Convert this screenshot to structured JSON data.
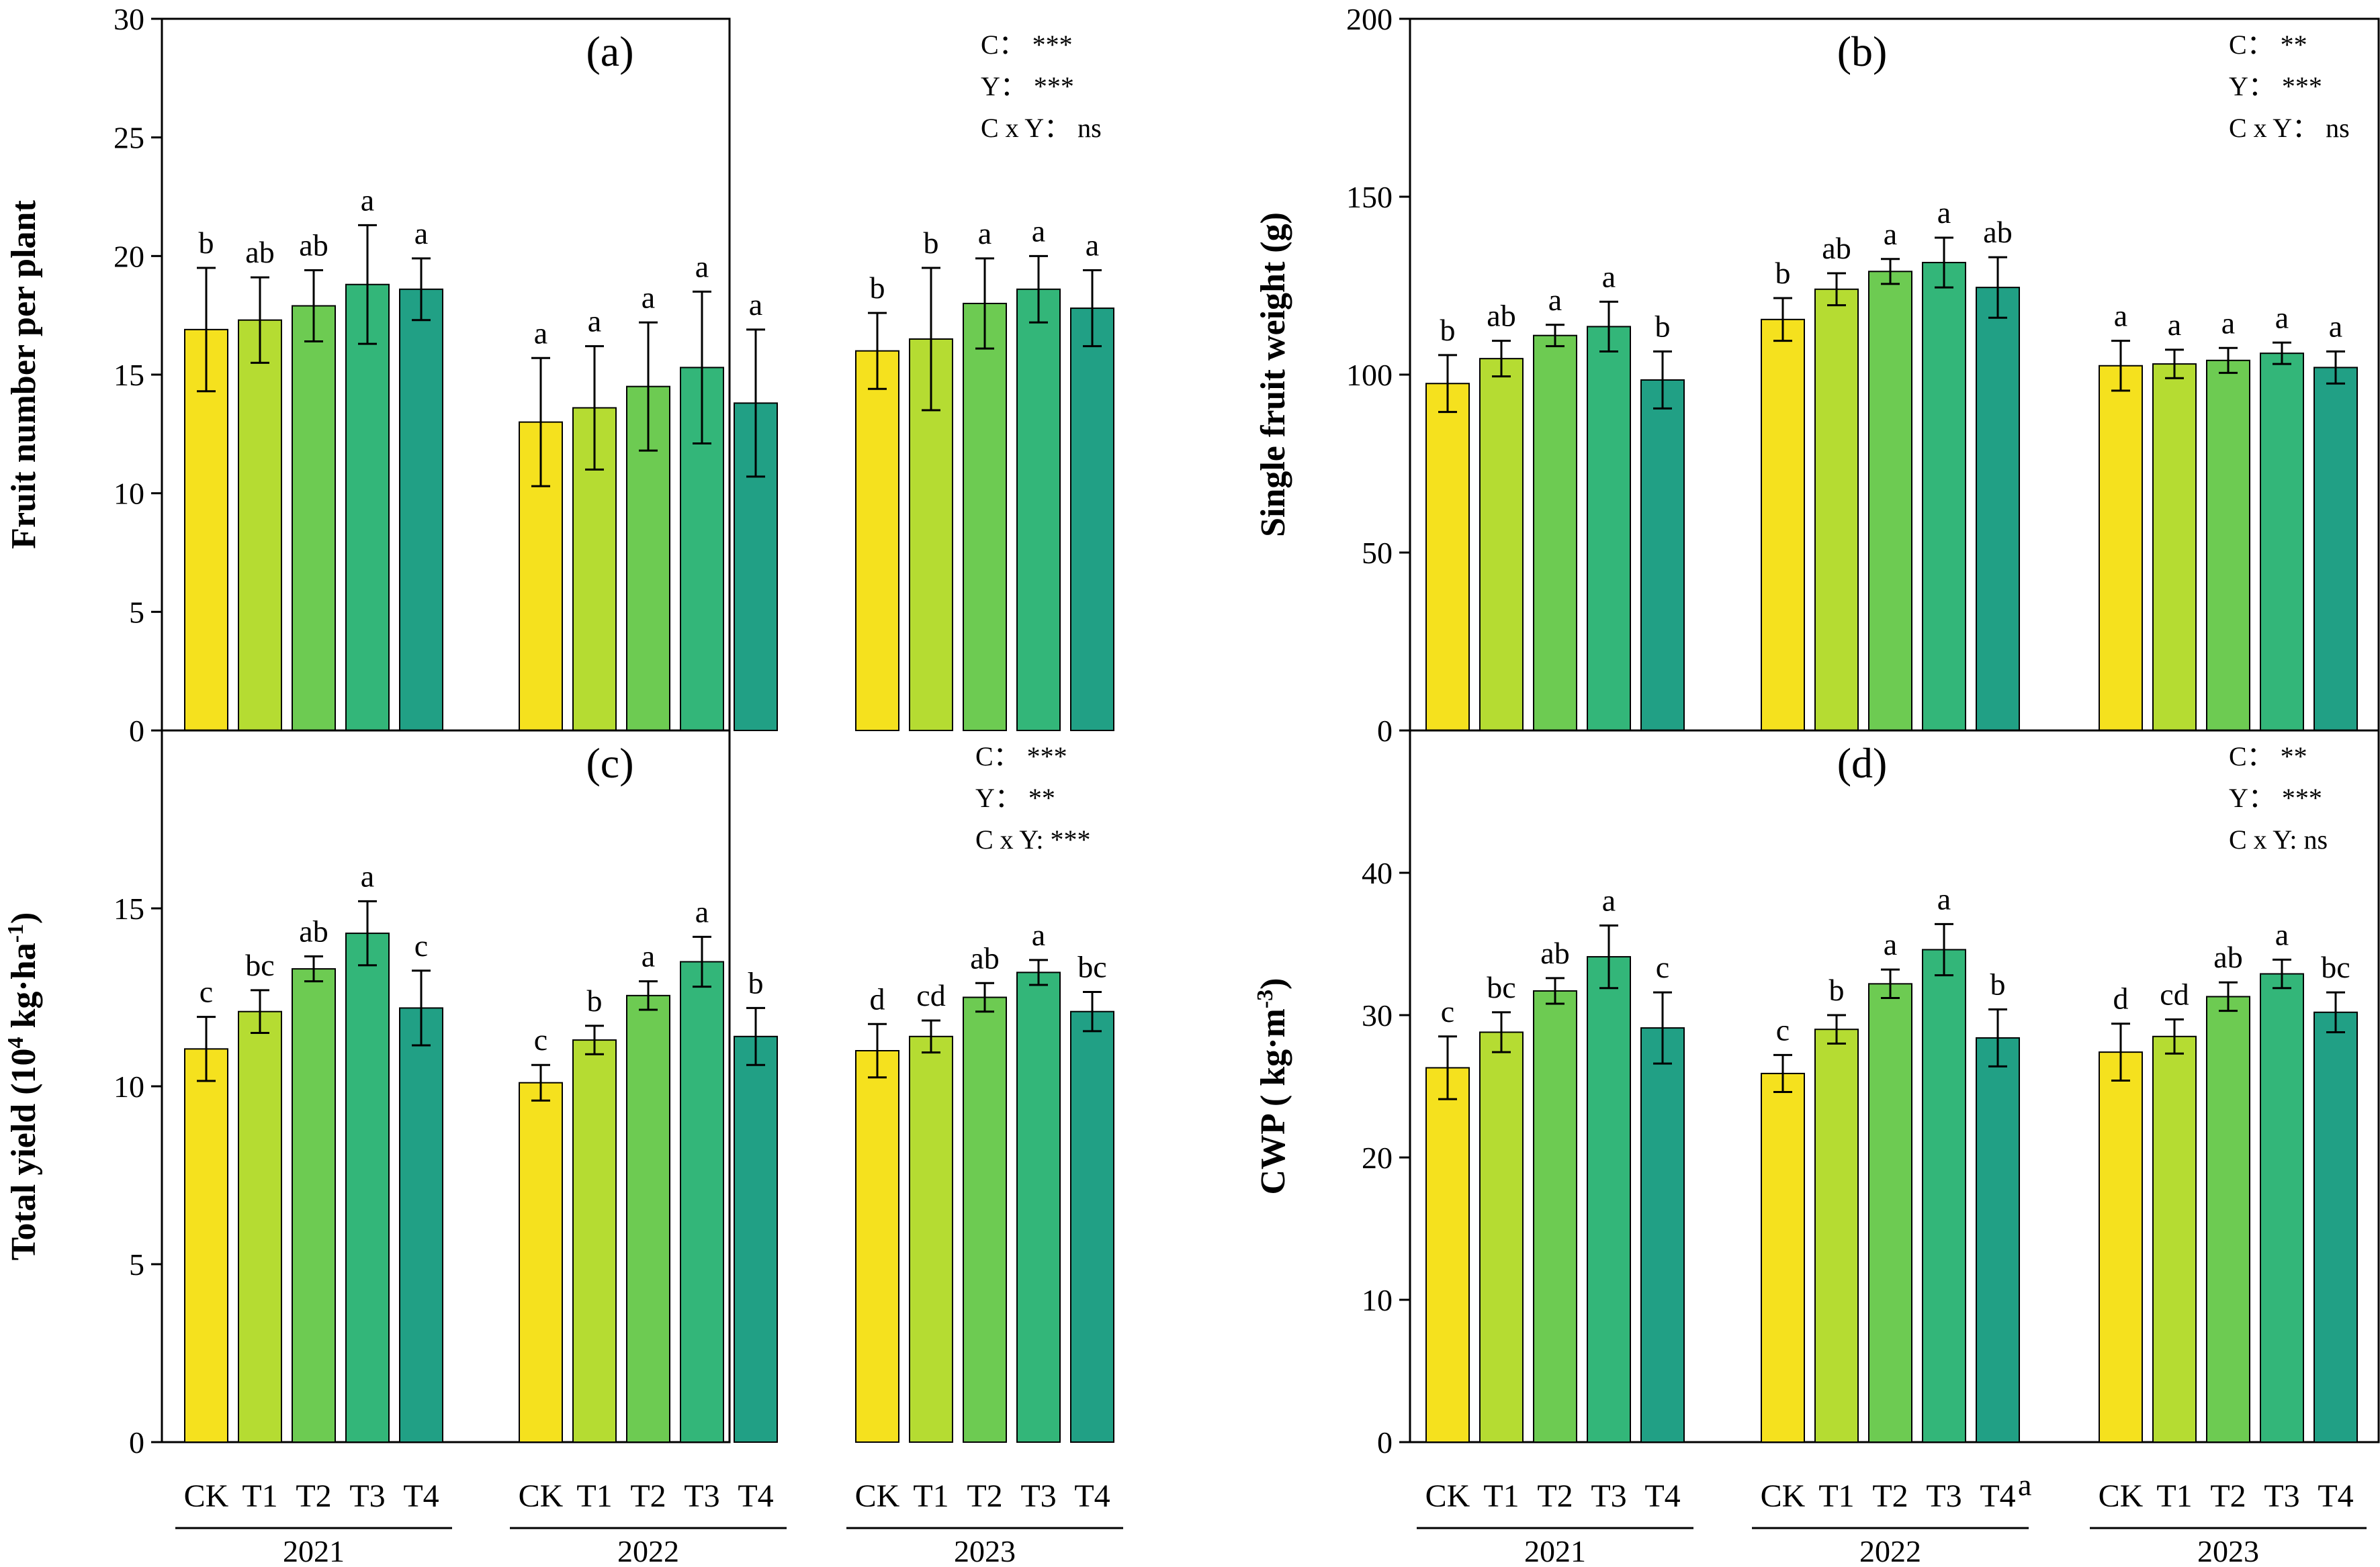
{
  "figure": {
    "treatments": [
      "CK",
      "T1",
      "T2",
      "T3",
      "T4"
    ],
    "years": [
      "2021",
      "2022",
      "2023"
    ],
    "colors": [
      "#f5e11e",
      "#b5dc32",
      "#6dcb52",
      "#33b679",
      "#21a085"
    ],
    "stray_mark": "a"
  },
  "chart_data": [
    {
      "id": "a",
      "type": "bar",
      "panel_label": "(a)",
      "ylabel": "Fruit number per plant",
      "ylabel_parts": [
        {
          "text": "Fruit number per plant",
          "sup": false
        }
      ],
      "ylim": [
        0,
        30
      ],
      "yticks": [
        0,
        5,
        10,
        15,
        20,
        25,
        30
      ],
      "stats": [
        "C： ***",
        "Y： ***",
        "C x Y： ns"
      ],
      "categories": [
        "2021",
        "2022",
        "2023"
      ],
      "series": [
        {
          "name": "CK",
          "values": [
            16.9,
            13.0,
            16.0
          ],
          "errors": [
            2.6,
            2.7,
            1.6
          ],
          "letters": [
            "b",
            "a",
            "b"
          ]
        },
        {
          "name": "T1",
          "values": [
            17.3,
            13.6,
            16.5
          ],
          "errors": [
            1.8,
            2.6,
            3.0
          ],
          "letters": [
            "ab",
            "a",
            "b"
          ]
        },
        {
          "name": "T2",
          "values": [
            17.9,
            14.5,
            18.0
          ],
          "errors": [
            1.5,
            2.7,
            1.9
          ],
          "letters": [
            "ab",
            "a",
            "a"
          ]
        },
        {
          "name": "T3",
          "values": [
            18.8,
            15.3,
            18.6
          ],
          "errors": [
            2.5,
            3.2,
            1.4
          ],
          "letters": [
            "a",
            "a",
            "a"
          ]
        },
        {
          "name": "T4",
          "values": [
            18.6,
            13.8,
            17.8
          ],
          "errors": [
            1.3,
            3.1,
            1.6
          ],
          "letters": [
            "a",
            "a",
            "a"
          ]
        }
      ]
    },
    {
      "id": "b",
      "type": "bar",
      "panel_label": "(b)",
      "ylabel": "Single fruit weight (g)",
      "ylabel_parts": [
        {
          "text": "Single fruit weight (g)",
          "sup": false
        }
      ],
      "ylim": [
        0,
        200
      ],
      "yticks": [
        0,
        50,
        100,
        150,
        200
      ],
      "stats": [
        "C： **",
        "Y： ***",
        "C x Y： ns"
      ],
      "categories": [
        "2021",
        "2022",
        "2023"
      ],
      "series": [
        {
          "name": "CK",
          "values": [
            97.5,
            115.5,
            102.5
          ],
          "errors": [
            8.0,
            6.0,
            7.0
          ],
          "letters": [
            "b",
            "b",
            "a"
          ]
        },
        {
          "name": "T1",
          "values": [
            104.5,
            124.0,
            103.0
          ],
          "errors": [
            5.0,
            4.5,
            4.0
          ],
          "letters": [
            "ab",
            "ab",
            "a"
          ]
        },
        {
          "name": "T2",
          "values": [
            111.0,
            129.0,
            104.0
          ],
          "errors": [
            3.0,
            3.5,
            3.5
          ],
          "letters": [
            "a",
            "a",
            "a"
          ]
        },
        {
          "name": "T3",
          "values": [
            113.5,
            131.5,
            106.0
          ],
          "errors": [
            7.0,
            7.0,
            3.0
          ],
          "letters": [
            "a",
            "a",
            "a"
          ]
        },
        {
          "name": "T4",
          "values": [
            98.5,
            124.5,
            102.0
          ],
          "errors": [
            8.0,
            8.5,
            4.5
          ],
          "letters": [
            "b",
            "ab",
            "a"
          ]
        }
      ]
    },
    {
      "id": "c",
      "type": "bar",
      "panel_label": "(c)",
      "ylabel": "Total yield (10^4 kg·ha^-1)",
      "ylabel_parts": [
        {
          "text": "Total yield (10",
          "sup": false
        },
        {
          "text": "4",
          "sup": true
        },
        {
          "text": " kg·ha",
          "sup": false
        },
        {
          "text": "-1",
          "sup": true
        },
        {
          "text": ")",
          "sup": false
        }
      ],
      "ylim": [
        0,
        20
      ],
      "yticks": [
        0,
        5,
        10,
        15
      ],
      "stats": [
        "C： ***",
        "Y： **",
        "C x Y: ***"
      ],
      "categories": [
        "2021",
        "2022",
        "2023"
      ],
      "series": [
        {
          "name": "CK",
          "values": [
            11.05,
            10.1,
            11.0
          ],
          "errors": [
            0.9,
            0.5,
            0.75
          ],
          "letters": [
            "c",
            "c",
            "d"
          ]
        },
        {
          "name": "T1",
          "values": [
            12.1,
            11.3,
            11.4
          ],
          "errors": [
            0.6,
            0.4,
            0.45
          ],
          "letters": [
            "bc",
            "b",
            "cd"
          ]
        },
        {
          "name": "T2",
          "values": [
            13.3,
            12.55,
            12.5
          ],
          "errors": [
            0.35,
            0.4,
            0.4
          ],
          "letters": [
            "ab",
            "a",
            "ab"
          ]
        },
        {
          "name": "T3",
          "values": [
            14.3,
            13.5,
            13.2
          ],
          "errors": [
            0.9,
            0.7,
            0.35
          ],
          "letters": [
            "a",
            "a",
            "a"
          ]
        },
        {
          "name": "T4",
          "values": [
            12.2,
            11.4,
            12.1
          ],
          "errors": [
            1.05,
            0.8,
            0.55
          ],
          "letters": [
            "c",
            "b",
            "bc"
          ]
        }
      ]
    },
    {
      "id": "d",
      "type": "bar",
      "panel_label": "(d)",
      "ylabel": "CWP ( kg·m^-3)",
      "ylabel_parts": [
        {
          "text": "CWP ( kg·m",
          "sup": false
        },
        {
          "text": "-3",
          "sup": true
        },
        {
          "text": ")",
          "sup": false
        }
      ],
      "ylim": [
        0,
        50
      ],
      "yticks": [
        0,
        10,
        20,
        30,
        40
      ],
      "stats": [
        "C： **",
        "Y： ***",
        "C x Y: ns"
      ],
      "categories": [
        "2021",
        "2022",
        "2023"
      ],
      "series": [
        {
          "name": "CK",
          "values": [
            26.3,
            25.9,
            27.4
          ],
          "errors": [
            2.2,
            1.3,
            2.0
          ],
          "letters": [
            "c",
            "c",
            "d"
          ]
        },
        {
          "name": "T1",
          "values": [
            28.8,
            29.0,
            28.5
          ],
          "errors": [
            1.4,
            1.0,
            1.2
          ],
          "letters": [
            "bc",
            "b",
            "cd"
          ]
        },
        {
          "name": "T2",
          "values": [
            31.7,
            32.2,
            31.3
          ],
          "errors": [
            0.9,
            1.0,
            1.0
          ],
          "letters": [
            "ab",
            "a",
            "ab"
          ]
        },
        {
          "name": "T3",
          "values": [
            34.1,
            34.6,
            32.9
          ],
          "errors": [
            2.2,
            1.8,
            1.0
          ],
          "letters": [
            "a",
            "a",
            "a"
          ]
        },
        {
          "name": "T4",
          "values": [
            29.1,
            28.4,
            30.2
          ],
          "errors": [
            2.5,
            2.0,
            1.4
          ],
          "letters": [
            "c",
            "b",
            "bc"
          ]
        }
      ]
    }
  ]
}
